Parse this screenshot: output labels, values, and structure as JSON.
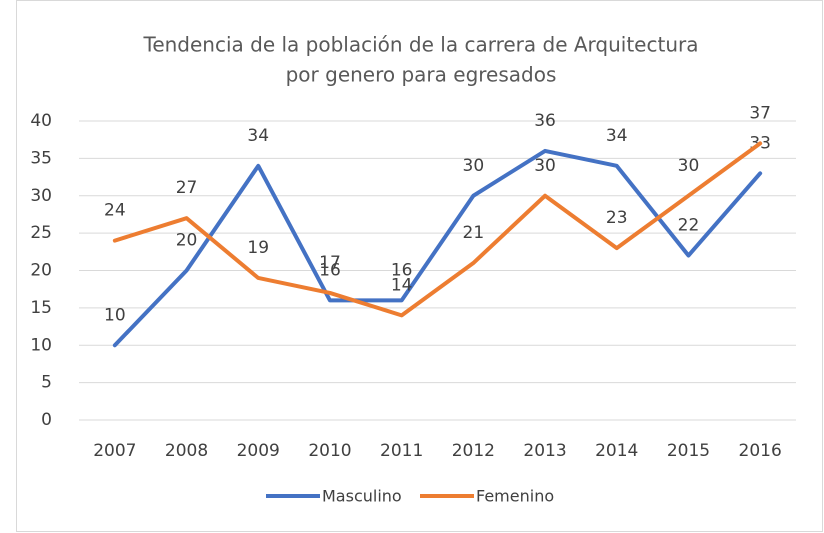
{
  "chart_data": {
    "type": "line",
    "title": [
      "Tendencia de la población de la carrera de Arquitectura",
      "por genero para egresados"
    ],
    "categories": [
      "2007",
      "2008",
      "2009",
      "2010",
      "2011",
      "2012",
      "2013",
      "2014",
      "2015",
      "2016"
    ],
    "series": [
      {
        "name": "Masculino",
        "color": "#4472c4",
        "values": [
          10,
          20,
          34,
          16,
          16,
          30,
          36,
          34,
          22,
          33
        ]
      },
      {
        "name": "Femenino",
        "color": "#ed7d31",
        "values": [
          24,
          27,
          19,
          17,
          14,
          21,
          30,
          23,
          30,
          37
        ]
      }
    ],
    "ylim": [
      0,
      40
    ],
    "yticks": [
      0,
      5,
      10,
      15,
      20,
      25,
      30,
      35,
      40
    ],
    "grid": true,
    "legend": "bottom"
  }
}
